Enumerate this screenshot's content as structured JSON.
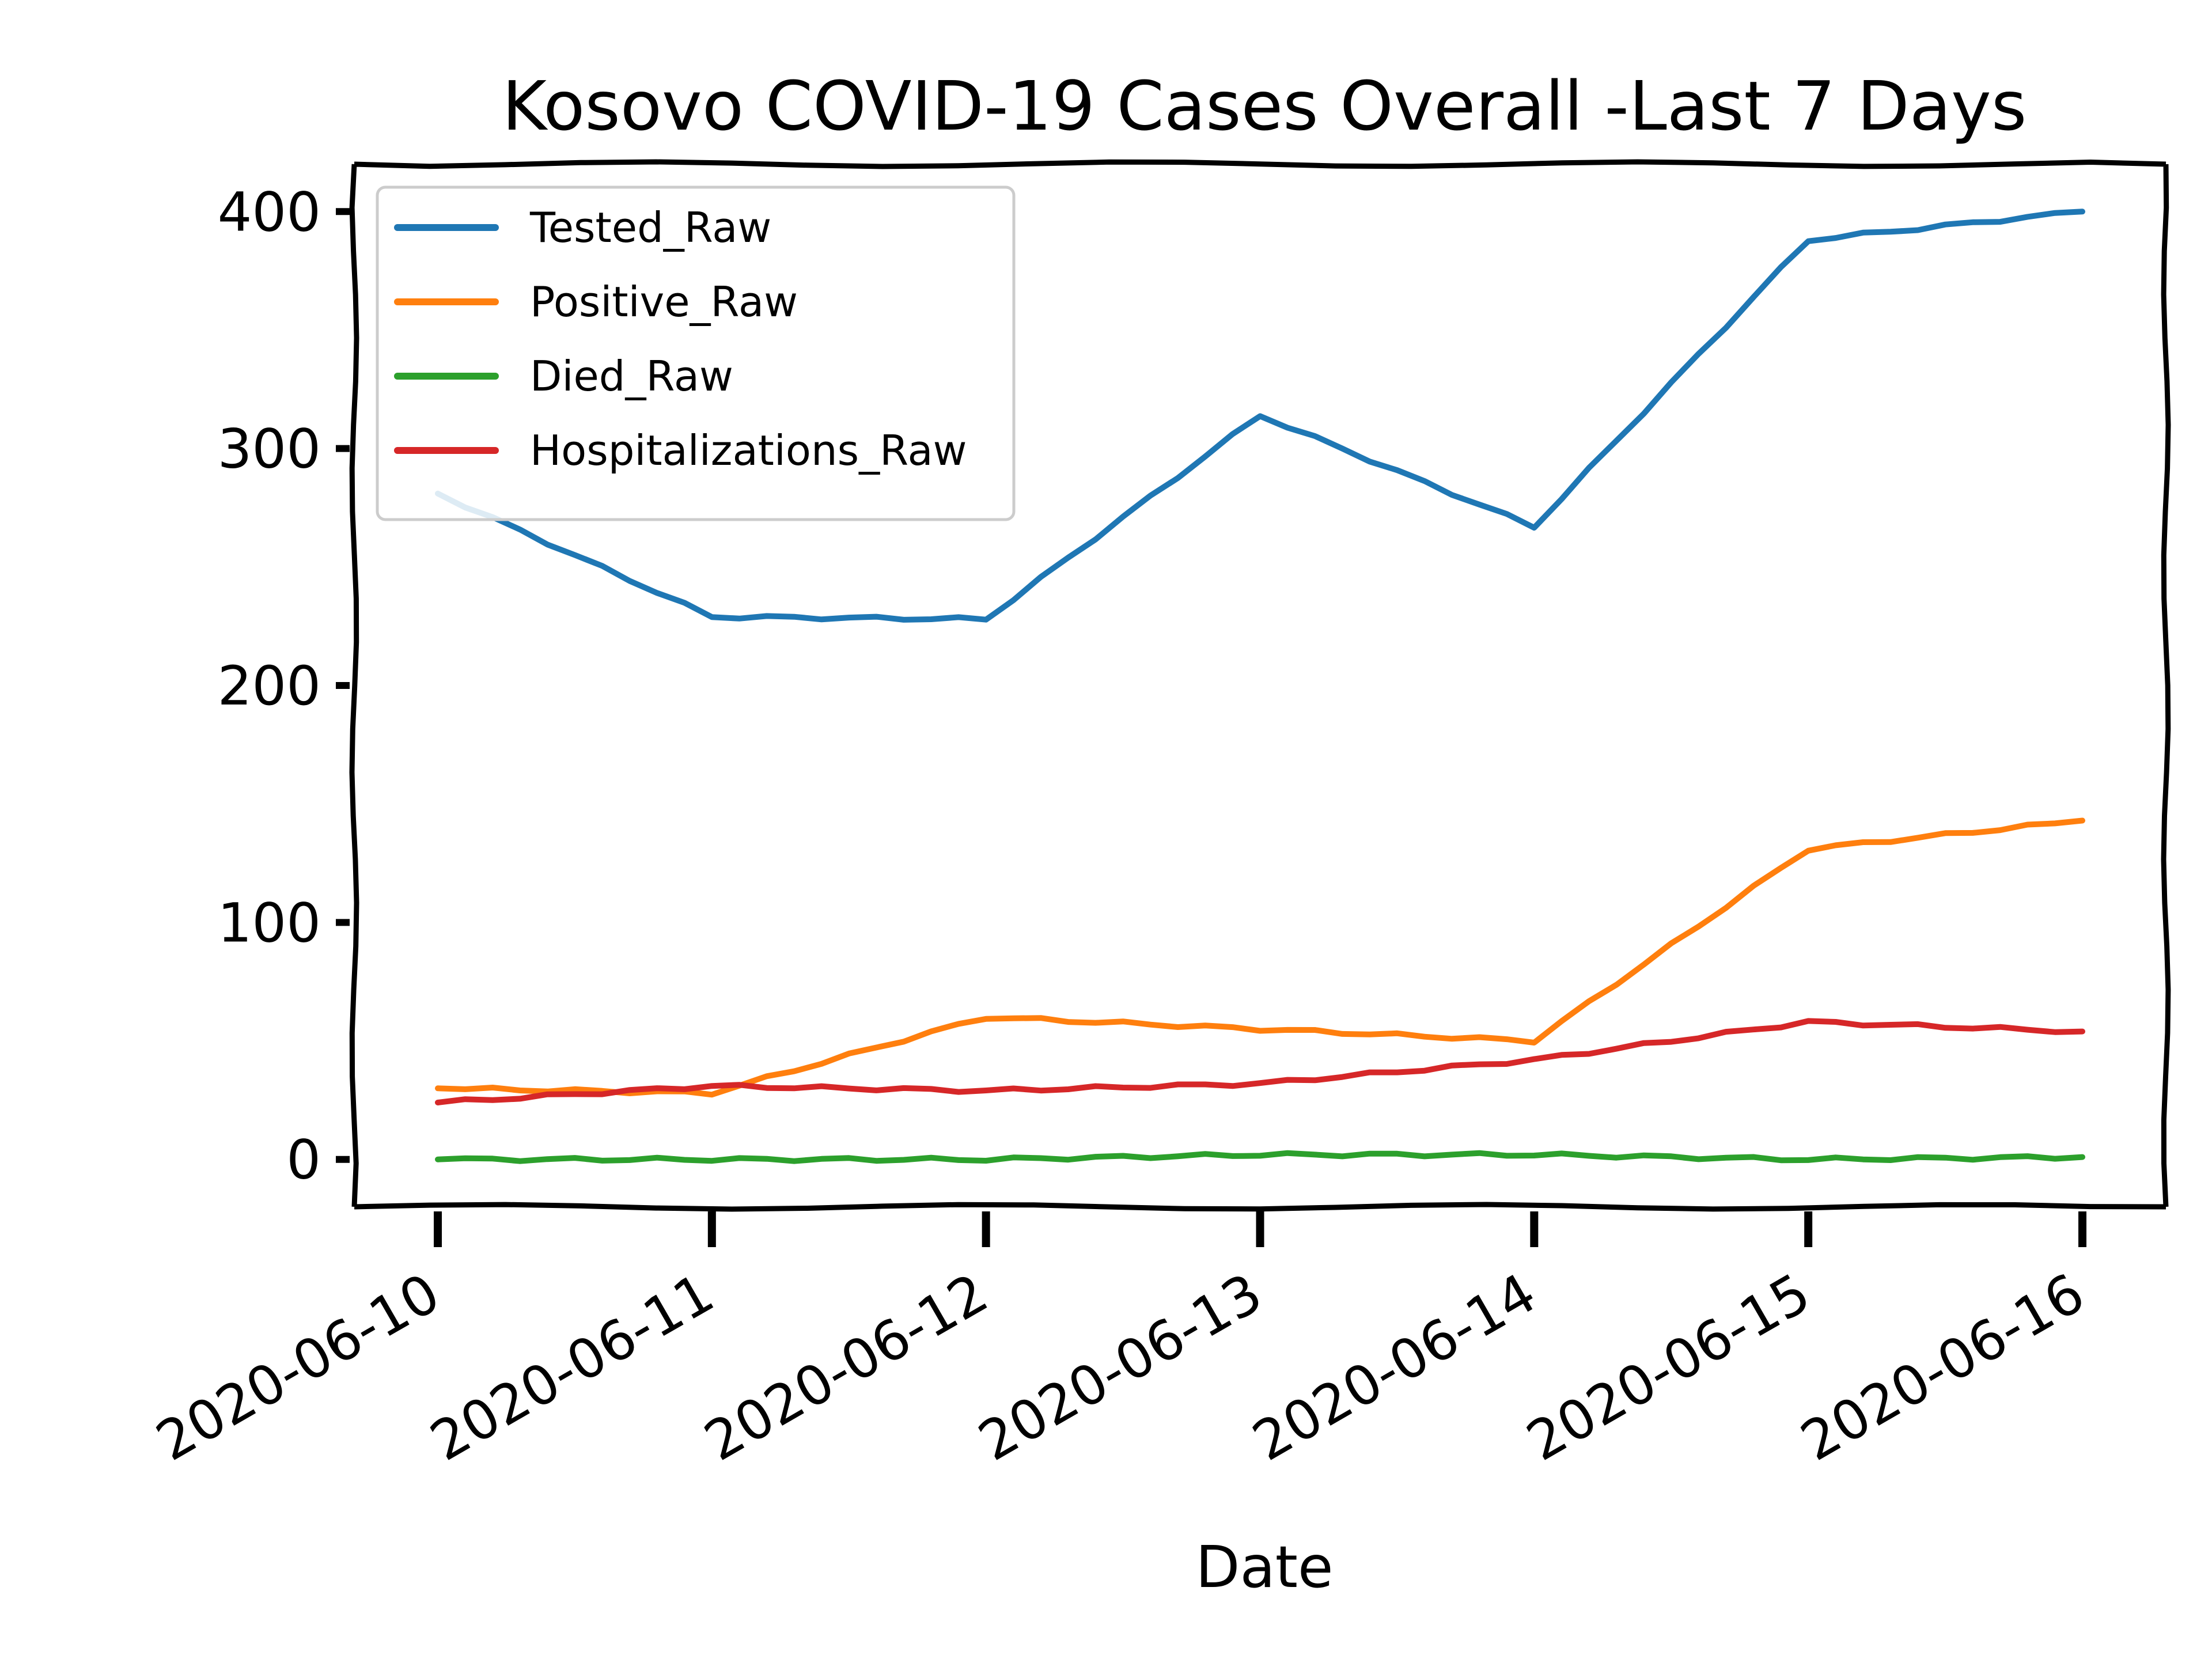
{
  "chart_data": {
    "type": "line",
    "title": "Kosovo COVID-19 Cases Overall -Last 7 Days",
    "xlabel": "Date",
    "ylabel": "",
    "categories": [
      "2020-06-10",
      "2020-06-11",
      "2020-06-12",
      "2020-06-13",
      "2020-06-14",
      "2020-06-15",
      "2020-06-16"
    ],
    "ylim": [
      -20,
      420
    ],
    "yticks": [
      0,
      100,
      200,
      300,
      400
    ],
    "ytick_labels": [
      "0",
      "100",
      "200",
      "300",
      "400"
    ],
    "grid": false,
    "legend_position": "top-left",
    "series": [
      {
        "name": "Tested_Raw",
        "color": "#1f77b4",
        "values": [
          281,
          229,
          228,
          314,
          267,
          388,
          400
        ]
      },
      {
        "name": "Positive_Raw",
        "color": "#ff7f0e",
        "values": [
          30,
          28,
          60,
          55,
          50,
          131,
          143
        ]
      },
      {
        "name": "Died_Raw",
        "color": "#2ca02c",
        "values": [
          0,
          0,
          0,
          2,
          2,
          0,
          1
        ]
      },
      {
        "name": "Hospitalizations_Raw",
        "color": "#d62728",
        "values": [
          24,
          31,
          29,
          32,
          42,
          58,
          54
        ]
      }
    ]
  }
}
